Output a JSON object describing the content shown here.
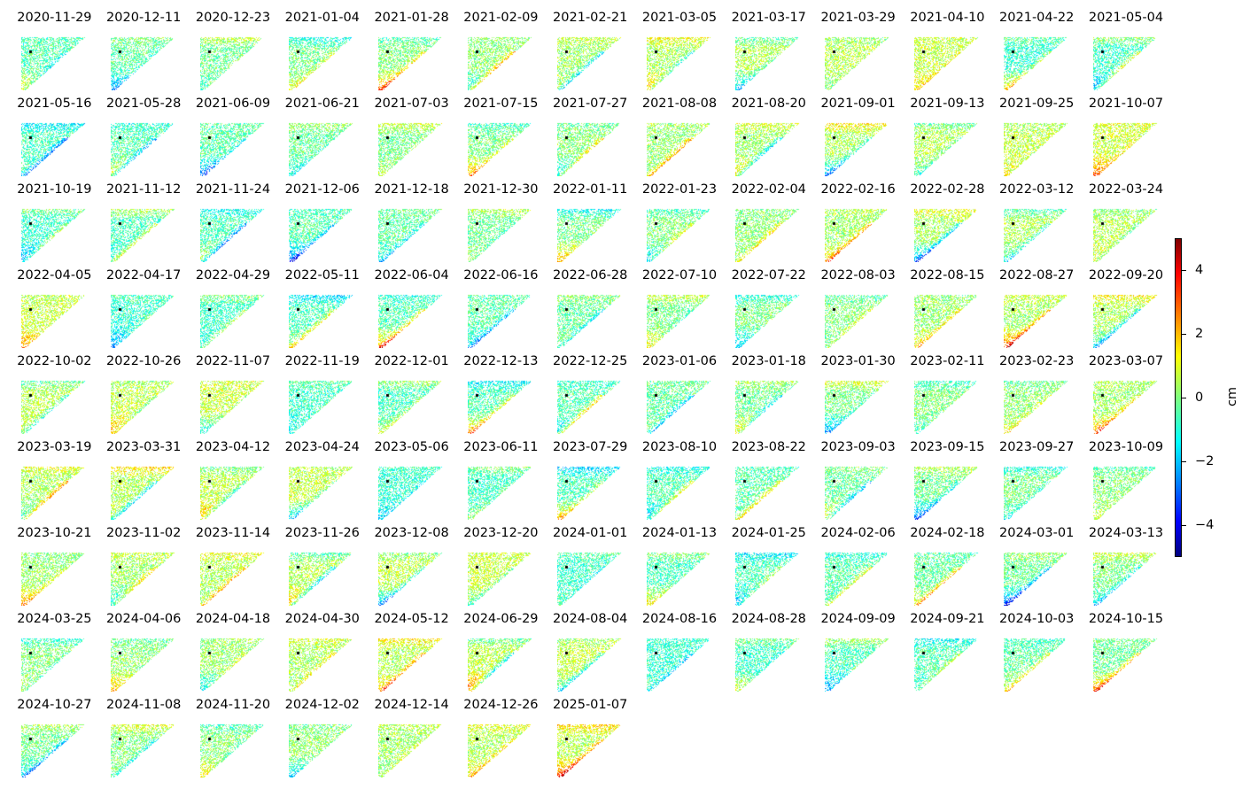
{
  "chart_data": {
    "type": "heatmap",
    "title": "",
    "dates": [
      "2020-11-29",
      "2020-12-11",
      "2020-12-23",
      "2021-01-04",
      "2021-01-28",
      "2021-02-09",
      "2021-02-21",
      "2021-03-05",
      "2021-03-17",
      "2021-03-29",
      "2021-04-10",
      "2021-04-22",
      "2021-05-04",
      "2021-05-16",
      "2021-05-28",
      "2021-06-09",
      "2021-06-21",
      "2021-07-03",
      "2021-07-15",
      "2021-07-27",
      "2021-08-08",
      "2021-08-20",
      "2021-09-01",
      "2021-09-13",
      "2021-09-25",
      "2021-10-07",
      "2021-10-19",
      "2021-11-12",
      "2021-11-24",
      "2021-12-06",
      "2021-12-18",
      "2021-12-30",
      "2022-01-11",
      "2022-01-23",
      "2022-02-04",
      "2022-02-16",
      "2022-02-28",
      "2022-03-12",
      "2022-03-24",
      "2022-04-05",
      "2022-04-17",
      "2022-04-29",
      "2022-05-11",
      "2022-06-04",
      "2022-06-16",
      "2022-06-28",
      "2022-07-10",
      "2022-07-22",
      "2022-08-03",
      "2022-08-15",
      "2022-08-27",
      "2022-09-20",
      "2022-10-02",
      "2022-10-26",
      "2022-11-07",
      "2022-11-19",
      "2022-12-01",
      "2022-12-13",
      "2022-12-25",
      "2023-01-06",
      "2023-01-18",
      "2023-01-30",
      "2023-02-11",
      "2023-02-23",
      "2023-03-07",
      "2023-03-19",
      "2023-03-31",
      "2023-04-12",
      "2023-04-24",
      "2023-05-06",
      "2023-06-11",
      "2023-07-29",
      "2023-08-10",
      "2023-08-22",
      "2023-09-03",
      "2023-09-15",
      "2023-09-27",
      "2023-10-09",
      "2023-10-21",
      "2023-11-02",
      "2023-11-14",
      "2023-11-26",
      "2023-12-08",
      "2023-12-20",
      "2024-01-01",
      "2024-01-13",
      "2024-01-25",
      "2024-02-06",
      "2024-02-18",
      "2024-03-01",
      "2024-03-13",
      "2024-03-25",
      "2024-04-06",
      "2024-04-18",
      "2024-04-30",
      "2024-05-12",
      "2024-06-29",
      "2024-08-04",
      "2024-08-16",
      "2024-08-28",
      "2024-09-09",
      "2024-09-21",
      "2024-10-03",
      "2024-10-15",
      "2024-10-27",
      "2024-11-08",
      "2024-11-20",
      "2024-12-02",
      "2024-12-14",
      "2024-12-26",
      "2025-01-07"
    ],
    "colormap": "jet",
    "vmin": -5,
    "vmax": 5,
    "colorbar": {
      "label": "cm",
      "ticks": [
        -4,
        -2,
        0,
        2,
        4
      ],
      "tick_labels": [
        "−4",
        "−2",
        "0",
        "2",
        "4"
      ]
    },
    "grid": false,
    "axes_visible": false
  }
}
